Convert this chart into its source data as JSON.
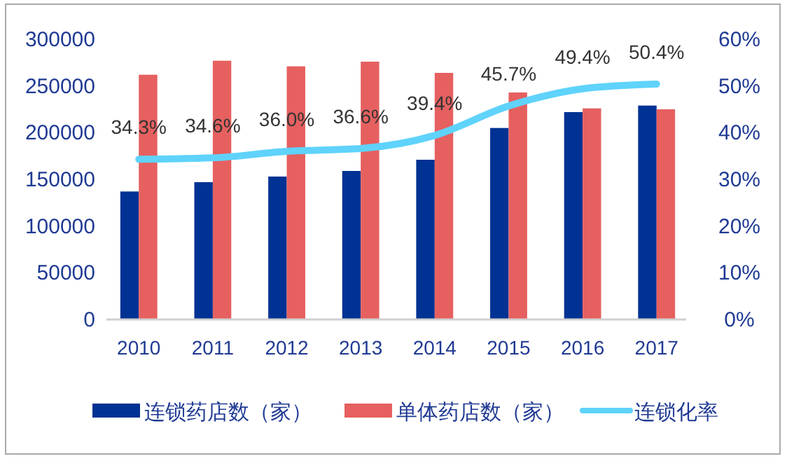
{
  "chart_data": {
    "type": "bar",
    "categories": [
      "2010",
      "2011",
      "2012",
      "2013",
      "2014",
      "2015",
      "2016",
      "2017"
    ],
    "series": [
      {
        "name": "连锁药店数（家）",
        "color": "#003293",
        "values": [
          137000,
          147000,
          153000,
          159000,
          171000,
          205000,
          222000,
          229000
        ]
      },
      {
        "name": "单体药店数（家）",
        "color": "#e66060",
        "values": [
          262000,
          277000,
          271000,
          276000,
          264000,
          243000,
          226000,
          225000
        ]
      },
      {
        "name": "连锁化率",
        "type": "line",
        "axis": "y2",
        "color": "#5fd3fb",
        "values": [
          34.3,
          34.6,
          36.0,
          36.6,
          39.4,
          45.7,
          49.4,
          50.4
        ],
        "value_labels": [
          "34.3%",
          "34.6%",
          "36.0%",
          "36.6%",
          "39.4%",
          "45.7%",
          "49.4%",
          "50.4%"
        ]
      }
    ],
    "ylim": [
      0,
      300000
    ],
    "yticks": [
      0,
      50000,
      100000,
      150000,
      200000,
      250000,
      300000
    ],
    "y2lim": [
      0,
      60
    ],
    "y2ticks": [
      {
        "value": 0,
        "label": "0%"
      },
      {
        "value": 10,
        "label": "10%"
      },
      {
        "value": 20,
        "label": "20%"
      },
      {
        "value": 30,
        "label": "30%"
      },
      {
        "value": 40,
        "label": "40%"
      },
      {
        "value": 50,
        "label": "50%"
      },
      {
        "value": 60,
        "label": "60%"
      }
    ],
    "legend": "bottom",
    "grid": false
  }
}
